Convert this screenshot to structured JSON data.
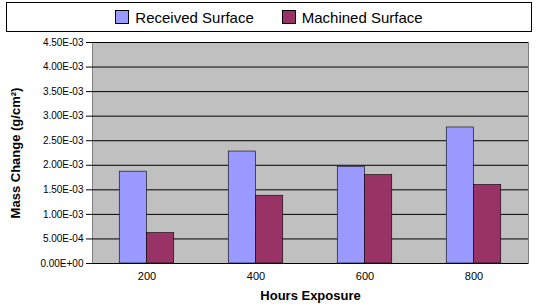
{
  "chart_data": {
    "type": "bar",
    "categories": [
      "200",
      "400",
      "600",
      "800"
    ],
    "series": [
      {
        "name": "Received Surface",
        "color": "#9999FF",
        "values": [
          0.00187,
          0.00228,
          0.00197,
          0.00277
        ]
      },
      {
        "name": "Machined Surface",
        "color": "#993366",
        "values": [
          0.00062,
          0.00138,
          0.0018,
          0.0016
        ]
      }
    ],
    "x_label": "Hours Exposure",
    "y_label": "Mass Change (g/cm²)",
    "ylim": [
      0,
      0.0045
    ],
    "yticks": [
      {
        "value": 0,
        "label": "0.00E+00"
      },
      {
        "value": 0.0005,
        "label": "5.00E-04"
      },
      {
        "value": 0.001,
        "label": "1.00E-03"
      },
      {
        "value": 0.0015,
        "label": "1.50E-03"
      },
      {
        "value": 0.002,
        "label": "2.00E-03"
      },
      {
        "value": 0.0025,
        "label": "2.50E-03"
      },
      {
        "value": 0.003,
        "label": "3.00E-03"
      },
      {
        "value": 0.0035,
        "label": "3.50E-03"
      },
      {
        "value": 0.004,
        "label": "4.00E-03"
      },
      {
        "value": 0.0045,
        "label": "4.50E-03"
      }
    ],
    "grid": true,
    "legend": "top"
  }
}
